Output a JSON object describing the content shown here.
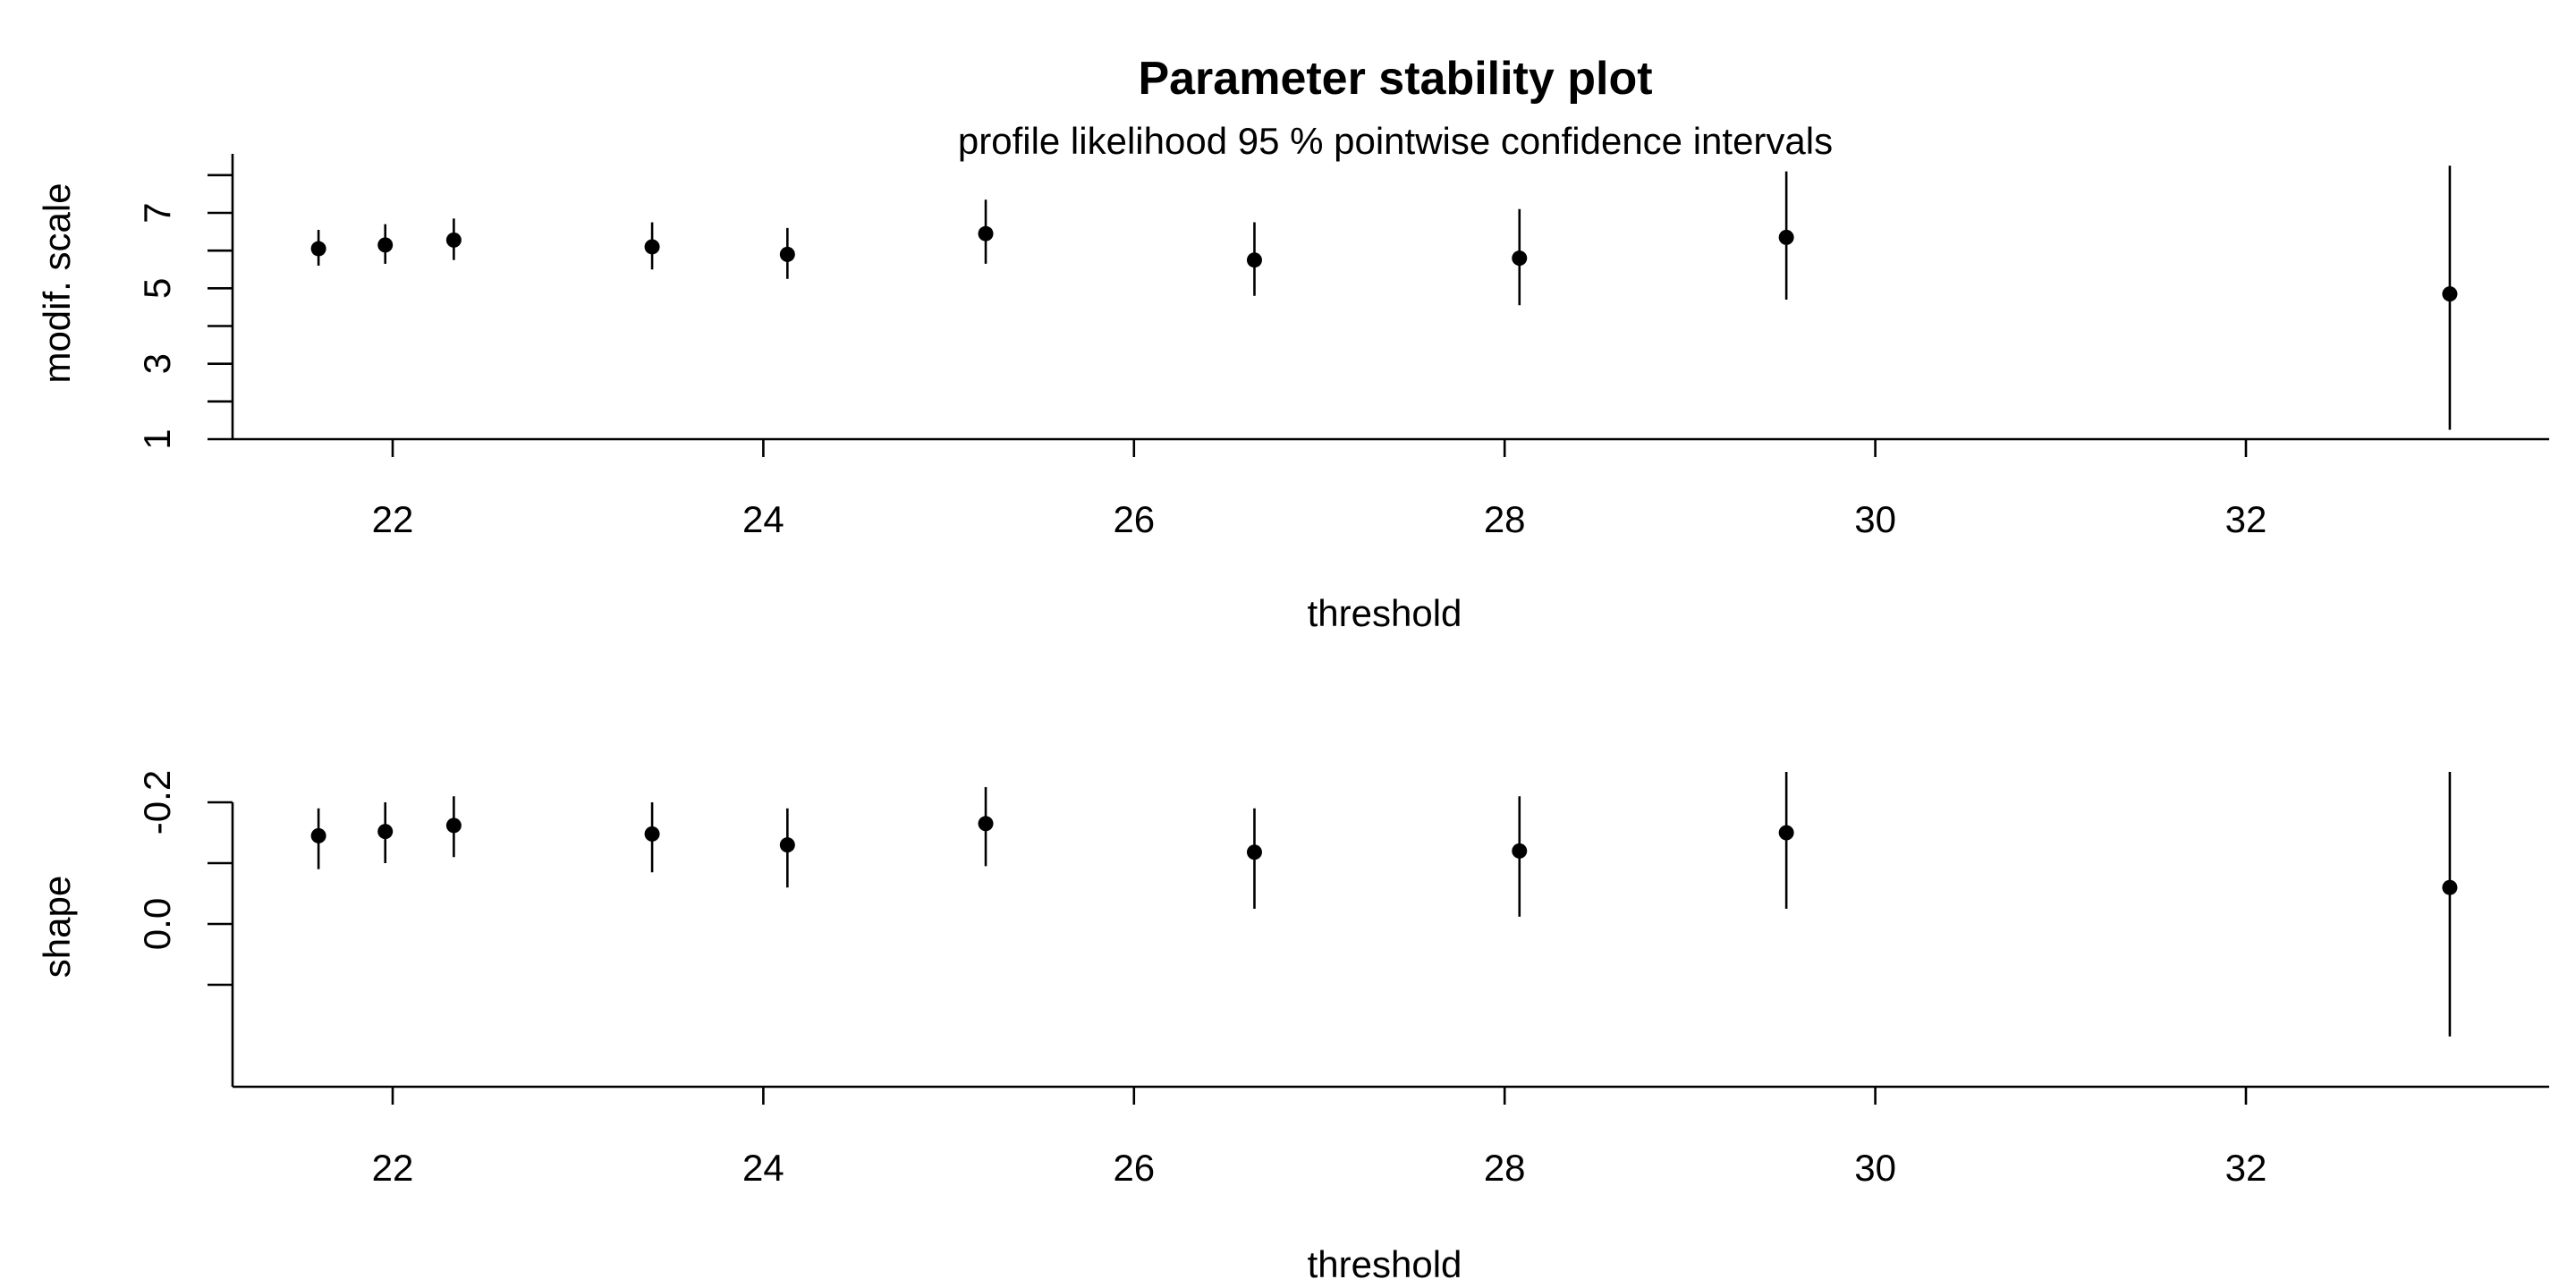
{
  "title": "Parameter stability plot",
  "subtitle": "profile likelihood 95 % pointwise confidence intervals",
  "chart_data": [
    {
      "type": "scatter",
      "title": "Parameter stability plot",
      "subtitle": "profile likelihood 95 % pointwise confidence intervals",
      "xlabel": "threshold",
      "ylabel": "modif. scale",
      "xlim": [
        21.15,
        33.6
      ],
      "ylim": [
        1,
        8.1
      ],
      "xticks": [
        22,
        24,
        26,
        28,
        30,
        32
      ],
      "yticks_major": [
        1,
        3,
        5,
        7
      ],
      "yticks_minor": [
        2,
        4,
        6,
        8
      ],
      "ytick_labels": [
        "1",
        "3",
        "5",
        "7"
      ],
      "grid": false,
      "x": [
        21.6,
        21.96,
        22.33,
        23.4,
        24.13,
        25.2,
        26.65,
        28.08,
        29.52,
        33.1
      ],
      "y": [
        6.05,
        6.15,
        6.28,
        6.1,
        5.9,
        6.45,
        5.75,
        5.8,
        6.35,
        4.85
      ],
      "lower": [
        5.6,
        5.65,
        5.75,
        5.5,
        5.25,
        5.65,
        4.8,
        4.55,
        4.7,
        1.25
      ],
      "upper": [
        6.55,
        6.7,
        6.85,
        6.75,
        6.6,
        7.35,
        6.75,
        7.1,
        8.1,
        8.25
      ]
    },
    {
      "type": "scatter",
      "xlabel": "threshold",
      "ylabel": "shape",
      "xlim": [
        21.15,
        33.6
      ],
      "ylim": [
        -0.27,
        0.2
      ],
      "xticks": [
        22,
        24,
        26,
        28,
        30,
        32
      ],
      "yticks_major": [
        -0.2,
        0.0
      ],
      "yticks_minor": [
        -0.1,
        0.1
      ],
      "ytick_labels": [
        "-0.2",
        "0.0"
      ],
      "grid": false,
      "x": [
        21.6,
        21.96,
        22.33,
        23.4,
        24.13,
        25.2,
        26.65,
        28.08,
        29.52,
        33.1
      ],
      "y": [
        -0.145,
        -0.152,
        -0.162,
        -0.148,
        -0.13,
        -0.165,
        -0.118,
        -0.12,
        -0.15,
        -0.06
      ],
      "lower": [
        -0.19,
        -0.2,
        -0.21,
        -0.2,
        -0.19,
        -0.225,
        -0.19,
        -0.21,
        -0.25,
        -0.25
      ],
      "upper": [
        -0.09,
        -0.1,
        -0.11,
        -0.085,
        -0.06,
        -0.095,
        -0.025,
        -0.012,
        -0.025,
        0.185
      ]
    }
  ]
}
